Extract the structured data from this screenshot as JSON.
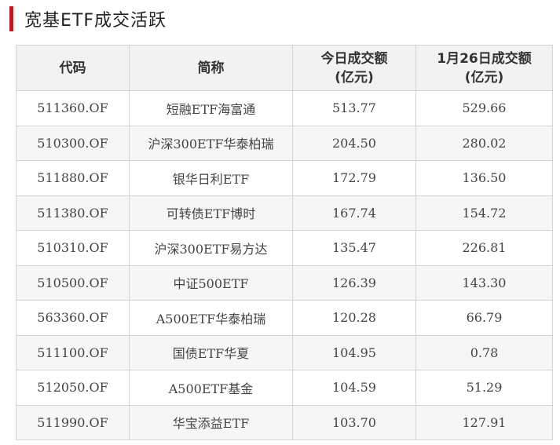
{
  "title": "宽基ETF成交活跃",
  "colors": {
    "accent": "#c8161d",
    "header_bg": "#f2f2f2",
    "row_alt_bg": "#f6f6f6"
  },
  "table": {
    "headers": [
      "代码",
      "简称",
      "今日成交额\n(亿元)",
      "1月26日成交额\n(亿元)"
    ],
    "rows": [
      [
        "511360.OF",
        "短融ETF海富通",
        "513.77",
        "529.66"
      ],
      [
        "510300.OF",
        "沪深300ETF华泰柏瑞",
        "204.50",
        "280.02"
      ],
      [
        "511880.OF",
        "银华日利ETF",
        "172.79",
        "136.50"
      ],
      [
        "511380.OF",
        "可转债ETF博时",
        "167.74",
        "154.72"
      ],
      [
        "510310.OF",
        "沪深300ETF易方达",
        "135.47",
        "226.81"
      ],
      [
        "510500.OF",
        "中证500ETF",
        "126.39",
        "143.30"
      ],
      [
        "563360.OF",
        "A500ETF华泰柏瑞",
        "120.28",
        "66.79"
      ],
      [
        "511100.OF",
        "国债ETF华夏",
        "104.95",
        "0.78"
      ],
      [
        "512050.OF",
        "A500ETF基金",
        "104.59",
        "51.29"
      ],
      [
        "511990.OF",
        "华宝添益ETF",
        "103.70",
        "127.91"
      ]
    ]
  }
}
